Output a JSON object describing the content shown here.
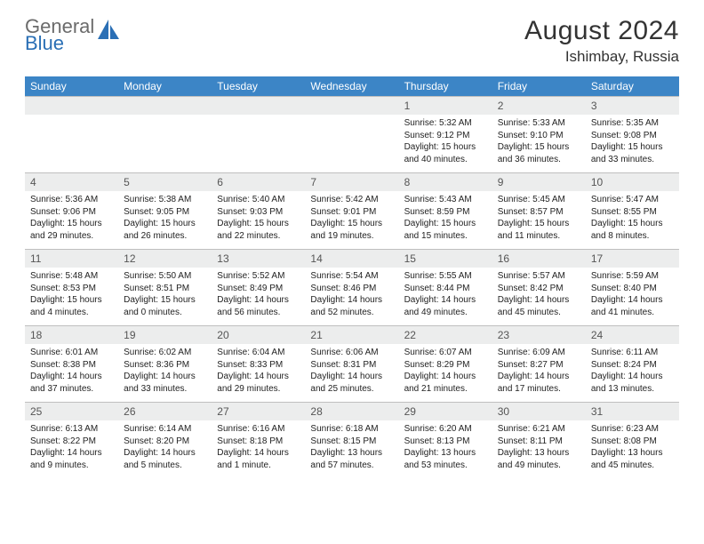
{
  "brand": {
    "part1": "General",
    "part2": "Blue"
  },
  "title": "August 2024",
  "location": "Ishimbay, Russia",
  "colors": {
    "header_bg": "#3c85c6",
    "header_text": "#ffffff",
    "daynum_bg": "#eceded",
    "text": "#222222",
    "border": "#bfbfbf",
    "brand_gray": "#6b6b6b",
    "brand_blue": "#2a6fb5"
  },
  "weekdays": [
    "Sunday",
    "Monday",
    "Tuesday",
    "Wednesday",
    "Thursday",
    "Friday",
    "Saturday"
  ],
  "weeks": [
    [
      {
        "blank": true
      },
      {
        "blank": true
      },
      {
        "blank": true
      },
      {
        "blank": true
      },
      {
        "day": 1,
        "sunrise": "5:32 AM",
        "sunset": "9:12 PM",
        "daylight": "15 hours and 40 minutes."
      },
      {
        "day": 2,
        "sunrise": "5:33 AM",
        "sunset": "9:10 PM",
        "daylight": "15 hours and 36 minutes."
      },
      {
        "day": 3,
        "sunrise": "5:35 AM",
        "sunset": "9:08 PM",
        "daylight": "15 hours and 33 minutes."
      }
    ],
    [
      {
        "day": 4,
        "sunrise": "5:36 AM",
        "sunset": "9:06 PM",
        "daylight": "15 hours and 29 minutes."
      },
      {
        "day": 5,
        "sunrise": "5:38 AM",
        "sunset": "9:05 PM",
        "daylight": "15 hours and 26 minutes."
      },
      {
        "day": 6,
        "sunrise": "5:40 AM",
        "sunset": "9:03 PM",
        "daylight": "15 hours and 22 minutes."
      },
      {
        "day": 7,
        "sunrise": "5:42 AM",
        "sunset": "9:01 PM",
        "daylight": "15 hours and 19 minutes."
      },
      {
        "day": 8,
        "sunrise": "5:43 AM",
        "sunset": "8:59 PM",
        "daylight": "15 hours and 15 minutes."
      },
      {
        "day": 9,
        "sunrise": "5:45 AM",
        "sunset": "8:57 PM",
        "daylight": "15 hours and 11 minutes."
      },
      {
        "day": 10,
        "sunrise": "5:47 AM",
        "sunset": "8:55 PM",
        "daylight": "15 hours and 8 minutes."
      }
    ],
    [
      {
        "day": 11,
        "sunrise": "5:48 AM",
        "sunset": "8:53 PM",
        "daylight": "15 hours and 4 minutes."
      },
      {
        "day": 12,
        "sunrise": "5:50 AM",
        "sunset": "8:51 PM",
        "daylight": "15 hours and 0 minutes."
      },
      {
        "day": 13,
        "sunrise": "5:52 AM",
        "sunset": "8:49 PM",
        "daylight": "14 hours and 56 minutes."
      },
      {
        "day": 14,
        "sunrise": "5:54 AM",
        "sunset": "8:46 PM",
        "daylight": "14 hours and 52 minutes."
      },
      {
        "day": 15,
        "sunrise": "5:55 AM",
        "sunset": "8:44 PM",
        "daylight": "14 hours and 49 minutes."
      },
      {
        "day": 16,
        "sunrise": "5:57 AM",
        "sunset": "8:42 PM",
        "daylight": "14 hours and 45 minutes."
      },
      {
        "day": 17,
        "sunrise": "5:59 AM",
        "sunset": "8:40 PM",
        "daylight": "14 hours and 41 minutes."
      }
    ],
    [
      {
        "day": 18,
        "sunrise": "6:01 AM",
        "sunset": "8:38 PM",
        "daylight": "14 hours and 37 minutes."
      },
      {
        "day": 19,
        "sunrise": "6:02 AM",
        "sunset": "8:36 PM",
        "daylight": "14 hours and 33 minutes."
      },
      {
        "day": 20,
        "sunrise": "6:04 AM",
        "sunset": "8:33 PM",
        "daylight": "14 hours and 29 minutes."
      },
      {
        "day": 21,
        "sunrise": "6:06 AM",
        "sunset": "8:31 PM",
        "daylight": "14 hours and 25 minutes."
      },
      {
        "day": 22,
        "sunrise": "6:07 AM",
        "sunset": "8:29 PM",
        "daylight": "14 hours and 21 minutes."
      },
      {
        "day": 23,
        "sunrise": "6:09 AM",
        "sunset": "8:27 PM",
        "daylight": "14 hours and 17 minutes."
      },
      {
        "day": 24,
        "sunrise": "6:11 AM",
        "sunset": "8:24 PM",
        "daylight": "14 hours and 13 minutes."
      }
    ],
    [
      {
        "day": 25,
        "sunrise": "6:13 AM",
        "sunset": "8:22 PM",
        "daylight": "14 hours and 9 minutes."
      },
      {
        "day": 26,
        "sunrise": "6:14 AM",
        "sunset": "8:20 PM",
        "daylight": "14 hours and 5 minutes."
      },
      {
        "day": 27,
        "sunrise": "6:16 AM",
        "sunset": "8:18 PM",
        "daylight": "14 hours and 1 minute."
      },
      {
        "day": 28,
        "sunrise": "6:18 AM",
        "sunset": "8:15 PM",
        "daylight": "13 hours and 57 minutes."
      },
      {
        "day": 29,
        "sunrise": "6:20 AM",
        "sunset": "8:13 PM",
        "daylight": "13 hours and 53 minutes."
      },
      {
        "day": 30,
        "sunrise": "6:21 AM",
        "sunset": "8:11 PM",
        "daylight": "13 hours and 49 minutes."
      },
      {
        "day": 31,
        "sunrise": "6:23 AM",
        "sunset": "8:08 PM",
        "daylight": "13 hours and 45 minutes."
      }
    ]
  ],
  "labels": {
    "sunrise": "Sunrise: ",
    "sunset": "Sunset: ",
    "daylight": "Daylight: "
  }
}
